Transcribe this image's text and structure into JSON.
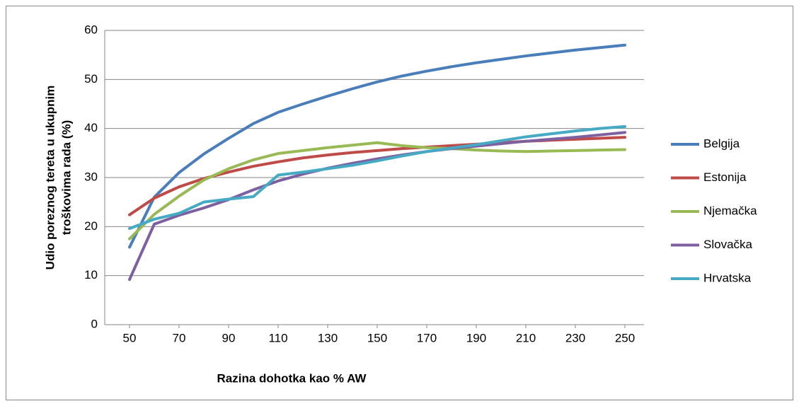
{
  "chart_data": {
    "type": "line",
    "xlabel": "Razina dohotka kao % AW",
    "ylabel": [
      "Udio poreznog tereta u ukupnim",
      "troškovima rada (%)"
    ],
    "x": [
      50,
      60,
      70,
      80,
      90,
      100,
      110,
      120,
      130,
      140,
      150,
      160,
      170,
      180,
      190,
      200,
      210,
      220,
      230,
      240,
      250
    ],
    "xlim": [
      40,
      260
    ],
    "xticks": [
      50,
      70,
      90,
      110,
      130,
      150,
      170,
      190,
      210,
      230,
      250
    ],
    "ylim": [
      0,
      60
    ],
    "yticks": [
      0,
      10,
      20,
      30,
      40,
      50,
      60
    ],
    "grid": true,
    "legend": "right",
    "series": [
      {
        "name": "Belgija",
        "color": "#4a7ebb",
        "values": [
          15.8,
          26,
          31,
          34.8,
          38,
          41,
          43.3,
          45,
          46.6,
          48.1,
          49.5,
          50.7,
          51.7,
          52.6,
          53.4,
          54.1,
          54.8,
          55.4,
          56,
          56.5,
          57
        ]
      },
      {
        "name": "Estonija",
        "color": "#be4b48",
        "values": [
          22.4,
          25.8,
          28.1,
          29.8,
          31.1,
          32.3,
          33.2,
          34,
          34.6,
          35.1,
          35.5,
          35.9,
          36.2,
          36.5,
          36.8,
          37.1,
          37.4,
          37.6,
          37.8,
          38,
          38.2
        ]
      },
      {
        "name": "Njemačka",
        "color": "#98b954",
        "values": [
          17.5,
          22.5,
          26.2,
          29.5,
          31.8,
          33.6,
          34.9,
          35.5,
          36.1,
          36.6,
          37.1,
          36.5,
          36.1,
          35.9,
          35.6,
          35.4,
          35.3,
          35.4,
          35.5,
          35.6,
          35.7
        ]
      },
      {
        "name": "Slovačka",
        "color": "#7d60a0",
        "values": [
          9.2,
          20.5,
          22.3,
          23.8,
          25.5,
          27.5,
          29.3,
          30.7,
          31.9,
          32.9,
          33.8,
          34.6,
          35.3,
          35.9,
          36.4,
          36.9,
          37.4,
          37.8,
          38.2,
          38.7,
          39.2
        ]
      },
      {
        "name": "Hrvatska",
        "color": "#46aac5",
        "values": [
          19.6,
          21.5,
          22.7,
          25,
          25.6,
          26.1,
          30.5,
          31.1,
          31.8,
          32.5,
          33.4,
          34.4,
          35.3,
          36,
          36.7,
          37.5,
          38.3,
          38.9,
          39.5,
          40,
          40.4
        ]
      }
    ]
  }
}
